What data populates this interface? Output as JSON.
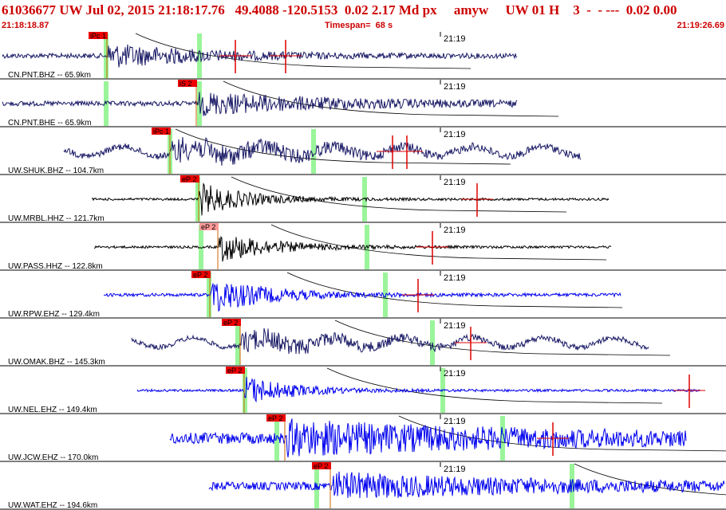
{
  "header": {
    "title": "61036677 UW Jul 02, 2015 21:18:17.76   49.4088 -120.5153  0.02 2.17 Md px     amyw     UW 01 H    3  -  - ---  0.02 0.00",
    "start_time": "21:18:18.87",
    "timespan": "Timespan=  68 s",
    "end_time": "21:19:26.69"
  },
  "colors": {
    "header_text": "#cc0000",
    "pick_box": "#ee0000",
    "pick_box_light": "#ff9a9a",
    "green_marker": "#9af59a",
    "trace_dark": "#1a1a66",
    "trace_black": "#000000",
    "trace_blue": "#0000ee",
    "pick_line": "#dd0000",
    "moveout_curve": "#000000"
  },
  "tick_label": "21:19",
  "channels": [
    {
      "label": "CN.PNT.BHZ -- 65.9km",
      "pick": "iPc 1",
      "color": "dark"
    },
    {
      "label": "CN.PNT.BHE -- 65.9km",
      "pick": "iS 2",
      "color": "dark"
    },
    {
      "label": "UW.SHUK.BHZ -- 104.7km",
      "pick": "iPc 1",
      "color": "dark"
    },
    {
      "label": "UW.MRBL.HHZ -- 121.7km",
      "pick": "eP 2",
      "color": "black"
    },
    {
      "label": "UW.PASS.HHZ -- 122.8km",
      "pick": "eP 2",
      "color": "black"
    },
    {
      "label": "UW.RPW.EHZ -- 129.4km",
      "pick": "eP 2",
      "color": "blue"
    },
    {
      "label": "UW.OMAK.BHZ -- 145.3km",
      "pick": "eP 2",
      "color": "dark"
    },
    {
      "label": "UW.NEL.EHZ -- 149.4km",
      "pick": "eP 2",
      "color": "blue"
    },
    {
      "label": "UW.JCW.EHZ -- 170.0km",
      "pick": "eP 2",
      "color": "blue"
    },
    {
      "label": "UW.WAT.EHZ -- 194.6km",
      "pick": "eP 2",
      "color": "blue"
    }
  ]
}
